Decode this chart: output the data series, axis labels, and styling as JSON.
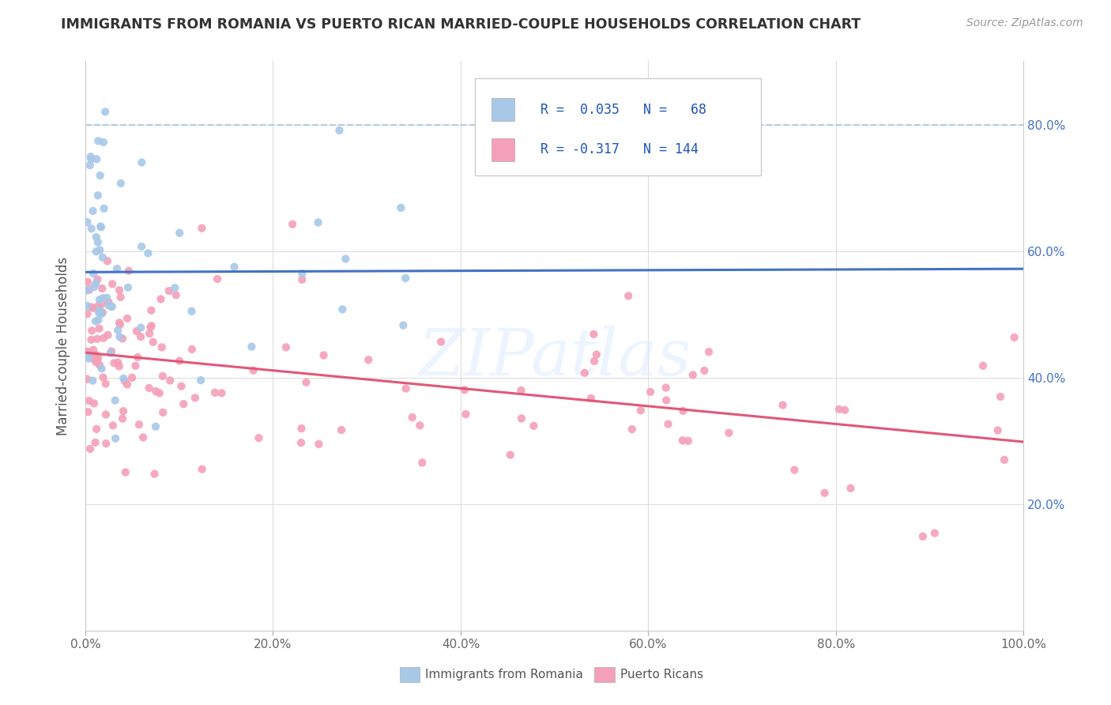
{
  "title": "IMMIGRANTS FROM ROMANIA VS PUERTO RICAN MARRIED-COUPLE HOUSEHOLDS CORRELATION CHART",
  "source": "Source: ZipAtlas.com",
  "ylabel": "Married-couple Households",
  "xlim": [
    0,
    100
  ],
  "ylim": [
    0,
    90
  ],
  "xticklabels": [
    "0.0%",
    "20.0%",
    "40.0%",
    "60.0%",
    "80.0%",
    "100.0%"
  ],
  "ytick_labels_right": [
    "20.0%",
    "40.0%",
    "60.0%",
    "80.0%"
  ],
  "blue_color": "#a8c8e8",
  "pink_color": "#f4a0b8",
  "blue_line_color": "#4472c4",
  "pink_line_color": "#e05878",
  "dashed_line_color": "#a0c4e8",
  "watermark": "ZIPatlas",
  "legend_text1": "R =  0.035   N =   68",
  "legend_text2": "R = -0.317   N = 144",
  "bottom_label1": "Immigrants from Romania",
  "bottom_label2": "Puerto Ricans"
}
